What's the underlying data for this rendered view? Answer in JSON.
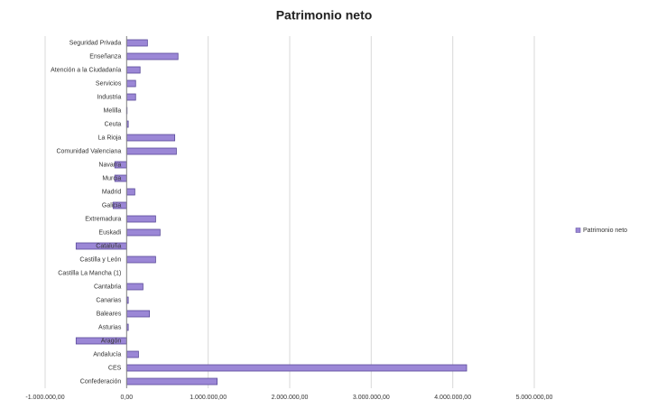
{
  "chart_data": {
    "type": "barh",
    "title": "Patrimonio neto",
    "categories": [
      "Seguridad Privada",
      "Enseñanza",
      "Atención a la Ciudadanía",
      "Servicios",
      "Industria",
      "Melilla",
      "Ceuta",
      "La Rioja",
      "Comunidad Valenciana",
      "Navarra",
      "Murcia",
      "Madrid",
      "Galicia",
      "Extremadura",
      "Euskadi",
      "Cataluña",
      "Castilla y León",
      "Castilla La Mancha (1)",
      "Cantabria",
      "Canarias",
      "Baleares",
      "Asturias",
      "Aragón",
      "Andalucía",
      "CES",
      "Confederación"
    ],
    "series": [
      {
        "name": "Patrimonio neto",
        "color": "#9b87d6",
        "values": [
          255000,
          630000,
          165000,
          110000,
          110000,
          5000,
          20000,
          590000,
          610000,
          -145000,
          -145000,
          100000,
          -165000,
          355000,
          410000,
          -620000,
          355000,
          0,
          200000,
          20000,
          280000,
          20000,
          -620000,
          145000,
          4170000,
          1110000
        ]
      }
    ],
    "xlim": [
      -1000000,
      5000000
    ],
    "xticks": [
      {
        "value": -1000000,
        "label": "-1.000.000,00"
      },
      {
        "value": 0,
        "label": "0,00"
      },
      {
        "value": 1000000,
        "label": "1.000.000,00"
      },
      {
        "value": 2000000,
        "label": "2.000.000,00"
      },
      {
        "value": 3000000,
        "label": "3.000.000,00"
      },
      {
        "value": 4000000,
        "label": "4.000.000,00"
      },
      {
        "value": 5000000,
        "label": "5.000.000,00"
      }
    ],
    "grid": true,
    "legend": "right"
  }
}
